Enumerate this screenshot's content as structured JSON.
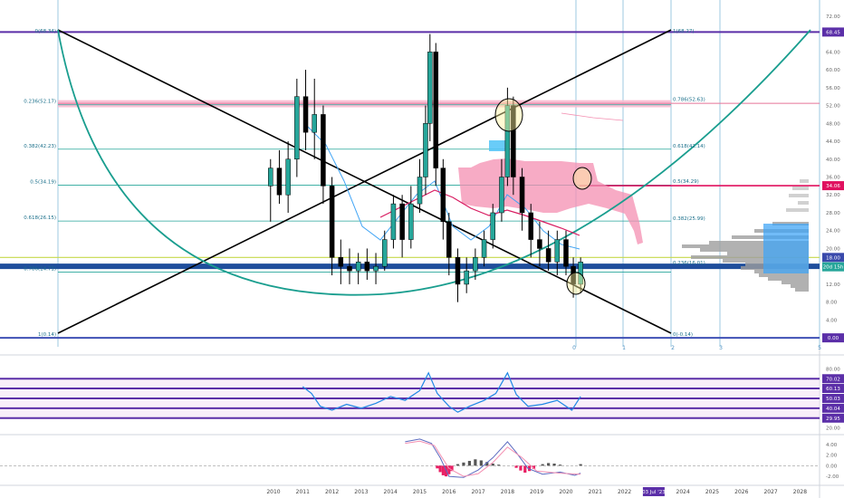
{
  "chart_data": {
    "type": "candlestick",
    "x_axis_years": [
      "2010",
      "2011",
      "2012",
      "2013",
      "2014",
      "2015",
      "2016",
      "2017",
      "2018",
      "2019",
      "2020",
      "2021",
      "2022",
      "2023",
      "2024",
      "2025",
      "2026",
      "2027",
      "2028"
    ],
    "date_badge": "03 Jul '23",
    "main_panel": {
      "y_ticks": [
        "72.00",
        "64.00",
        "60.00",
        "56.00",
        "52.00",
        "48.00",
        "44.00",
        "40.00",
        "36.00",
        "32.00",
        "28.00",
        "24.00",
        "20.00",
        "16.00",
        "12.00",
        "8.00",
        "4.00"
      ],
      "ylim": [
        -2,
        74
      ],
      "price_badges": [
        {
          "value": 68.45,
          "label": "68.45",
          "color": "#5b2fa8"
        },
        {
          "value": 34.06,
          "label": "34.06",
          "color": "#e0115f"
        },
        {
          "value": 18.0,
          "label": "18.00",
          "color": "#3949ab"
        },
        {
          "value": 15.9,
          "label": "20d 15h",
          "color": "#26a69a"
        },
        {
          "value": 0.0,
          "label": "0.00",
          "color": "#5b2fa8"
        }
      ],
      "fib_left": [
        {
          "label": "0(68.34)",
          "value": 68.34
        },
        {
          "label": "0.236(52.17)",
          "value": 52.17
        },
        {
          "label": "0.382(42.23)",
          "value": 42.23
        },
        {
          "label": "0.5(34.19)",
          "value": 34.19
        },
        {
          "label": "0.618(26.15)",
          "value": 26.15
        },
        {
          "label": "0.786(14.71)",
          "value": 14.71
        },
        {
          "label": "1(0.14)",
          "value": 0.14
        }
      ],
      "fib_right": [
        {
          "label": "1(68.27)",
          "value": 68.27
        },
        {
          "label": "0.786(52.63)",
          "value": 52.63
        },
        {
          "label": "0.618(42.14)",
          "value": 42.14
        },
        {
          "label": "0.5(34.29)",
          "value": 34.29
        },
        {
          "label": "0.382(25.99)",
          "value": 25.99
        },
        {
          "label": "0.236(16.01)",
          "value": 16.01
        },
        {
          "label": "0(-0.14)",
          "value": -0.14
        }
      ],
      "time_fib_labels": [
        "0",
        "1",
        "2",
        "3",
        "5"
      ],
      "horizontal_lines": [
        {
          "value": 68.45,
          "color": "#5b2fa8"
        },
        {
          "value": 52.5,
          "color": "#e57399"
        },
        {
          "value": 34.06,
          "color": "#e0115f"
        },
        {
          "value": 18.0,
          "color": "#c6d84a"
        },
        {
          "value": 16.0,
          "color": "#1f4e9c"
        },
        {
          "value": 0.0,
          "color": "#3f51b5"
        }
      ],
      "candles": [
        {
          "t": 2009.9,
          "o": 34,
          "h": 40,
          "l": 26,
          "c": 38
        },
        {
          "t": 2010.2,
          "o": 38,
          "h": 42,
          "l": 30,
          "c": 32
        },
        {
          "t": 2010.5,
          "o": 32,
          "h": 44,
          "l": 28,
          "c": 40
        },
        {
          "t": 2010.8,
          "o": 40,
          "h": 58,
          "l": 36,
          "c": 54
        },
        {
          "t": 2011.1,
          "o": 54,
          "h": 60,
          "l": 42,
          "c": 46
        },
        {
          "t": 2011.4,
          "o": 46,
          "h": 58,
          "l": 40,
          "c": 50
        },
        {
          "t": 2011.7,
          "o": 50,
          "h": 52,
          "l": 30,
          "c": 34
        },
        {
          "t": 2012.0,
          "o": 34,
          "h": 36,
          "l": 14,
          "c": 18
        },
        {
          "t": 2012.3,
          "o": 18,
          "h": 22,
          "l": 12,
          "c": 16
        },
        {
          "t": 2012.6,
          "o": 16,
          "h": 20,
          "l": 12,
          "c": 15
        },
        {
          "t": 2012.9,
          "o": 15,
          "h": 19,
          "l": 12,
          "c": 17
        },
        {
          "t": 2013.2,
          "o": 17,
          "h": 20,
          "l": 13,
          "c": 15
        },
        {
          "t": 2013.5,
          "o": 15,
          "h": 19,
          "l": 12,
          "c": 16
        },
        {
          "t": 2013.8,
          "o": 16,
          "h": 24,
          "l": 15,
          "c": 22
        },
        {
          "t": 2014.1,
          "o": 22,
          "h": 32,
          "l": 20,
          "c": 30
        },
        {
          "t": 2014.4,
          "o": 30,
          "h": 32,
          "l": 18,
          "c": 22
        },
        {
          "t": 2014.7,
          "o": 22,
          "h": 34,
          "l": 20,
          "c": 30
        },
        {
          "t": 2015.0,
          "o": 30,
          "h": 40,
          "l": 28,
          "c": 36
        },
        {
          "t": 2015.2,
          "o": 36,
          "h": 52,
          "l": 32,
          "c": 48
        },
        {
          "t": 2015.35,
          "o": 48,
          "h": 68,
          "l": 44,
          "c": 64
        },
        {
          "t": 2015.55,
          "o": 64,
          "h": 66,
          "l": 34,
          "c": 38
        },
        {
          "t": 2015.8,
          "o": 38,
          "h": 40,
          "l": 22,
          "c": 26
        },
        {
          "t": 2016.0,
          "o": 26,
          "h": 28,
          "l": 14,
          "c": 18
        },
        {
          "t": 2016.3,
          "o": 18,
          "h": 20,
          "l": 8,
          "c": 12
        },
        {
          "t": 2016.6,
          "o": 12,
          "h": 18,
          "l": 10,
          "c": 15
        },
        {
          "t": 2016.9,
          "o": 15,
          "h": 20,
          "l": 13,
          "c": 18
        },
        {
          "t": 2017.2,
          "o": 18,
          "h": 24,
          "l": 16,
          "c": 22
        },
        {
          "t": 2017.5,
          "o": 22,
          "h": 30,
          "l": 20,
          "c": 28
        },
        {
          "t": 2017.8,
          "o": 28,
          "h": 40,
          "l": 26,
          "c": 36
        },
        {
          "t": 2018.0,
          "o": 36,
          "h": 56,
          "l": 34,
          "c": 52
        },
        {
          "t": 2018.2,
          "o": 52,
          "h": 54,
          "l": 32,
          "c": 36
        },
        {
          "t": 2018.5,
          "o": 36,
          "h": 38,
          "l": 24,
          "c": 28
        },
        {
          "t": 2018.8,
          "o": 28,
          "h": 30,
          "l": 18,
          "c": 22
        },
        {
          "t": 2019.1,
          "o": 22,
          "h": 26,
          "l": 16,
          "c": 20
        },
        {
          "t": 2019.4,
          "o": 20,
          "h": 24,
          "l": 15,
          "c": 17
        },
        {
          "t": 2019.7,
          "o": 17,
          "h": 24,
          "l": 14,
          "c": 22
        },
        {
          "t": 2020.0,
          "o": 22,
          "h": 24,
          "l": 14,
          "c": 16
        },
        {
          "t": 2020.25,
          "o": 16,
          "h": 18,
          "l": 9,
          "c": 12
        },
        {
          "t": 2020.5,
          "o": 12,
          "h": 18,
          "l": 10,
          "c": 17
        }
      ]
    },
    "rsi_panel": {
      "y_ticks": [
        "80.00",
        "70.02",
        "60.13",
        "50.03",
        "40.04",
        "29.95",
        "20.00"
      ],
      "ylim": [
        15,
        85
      ],
      "levels": [
        {
          "value": 70.02,
          "label": "70.02"
        },
        {
          "value": 60.13,
          "label": "60.13"
        },
        {
          "value": 50.03,
          "label": "50.03"
        },
        {
          "value": 40.04,
          "label": "40.04"
        },
        {
          "value": 29.95,
          "label": "29.95"
        }
      ],
      "series": [
        {
          "t": 2011.0,
          "v": 62
        },
        {
          "t": 2011.3,
          "v": 55
        },
        {
          "t": 2011.6,
          "v": 42
        },
        {
          "t": 2012.0,
          "v": 38
        },
        {
          "t": 2012.5,
          "v": 44
        },
        {
          "t": 2013.0,
          "v": 40
        },
        {
          "t": 2013.5,
          "v": 45
        },
        {
          "t": 2014.0,
          "v": 52
        },
        {
          "t": 2014.5,
          "v": 48
        },
        {
          "t": 2015.0,
          "v": 58
        },
        {
          "t": 2015.3,
          "v": 76
        },
        {
          "t": 2015.6,
          "v": 55
        },
        {
          "t": 2016.0,
          "v": 42
        },
        {
          "t": 2016.3,
          "v": 36
        },
        {
          "t": 2016.7,
          "v": 42
        },
        {
          "t": 2017.2,
          "v": 48
        },
        {
          "t": 2017.6,
          "v": 55
        },
        {
          "t": 2018.0,
          "v": 76
        },
        {
          "t": 2018.3,
          "v": 54
        },
        {
          "t": 2018.7,
          "v": 42
        },
        {
          "t": 2019.2,
          "v": 44
        },
        {
          "t": 2019.7,
          "v": 48
        },
        {
          "t": 2020.2,
          "v": 38
        },
        {
          "t": 2020.5,
          "v": 52
        }
      ]
    },
    "macd_panel": {
      "y_ticks": [
        "4.00",
        "2.00",
        "0.00",
        "-2.00"
      ],
      "ylim": [
        -3,
        5.5
      ],
      "histogram": [
        {
          "t": 2015.6,
          "v": -0.5
        },
        {
          "t": 2015.7,
          "v": -1.2
        },
        {
          "t": 2015.8,
          "v": -1.8
        },
        {
          "t": 2015.9,
          "v": -2.0
        },
        {
          "t": 2016.0,
          "v": -1.6
        },
        {
          "t": 2016.1,
          "v": -1.0
        },
        {
          "t": 2016.3,
          "v": 0.3
        },
        {
          "t": 2016.5,
          "v": 0.6
        },
        {
          "t": 2016.7,
          "v": 0.9
        },
        {
          "t": 2016.9,
          "v": 1.2
        },
        {
          "t": 2017.1,
          "v": 1.0
        },
        {
          "t": 2017.3,
          "v": 0.7
        },
        {
          "t": 2017.5,
          "v": 0.4
        },
        {
          "t": 2017.7,
          "v": 0.2
        },
        {
          "t": 2018.3,
          "v": -0.4
        },
        {
          "t": 2018.45,
          "v": -0.9
        },
        {
          "t": 2018.6,
          "v": -1.3
        },
        {
          "t": 2018.75,
          "v": -1.0
        },
        {
          "t": 2018.9,
          "v": -0.6
        },
        {
          "t": 2019.2,
          "v": 0.3
        },
        {
          "t": 2019.4,
          "v": 0.5
        },
        {
          "t": 2019.6,
          "v": 0.4
        },
        {
          "t": 2019.8,
          "v": 0.2
        },
        {
          "t": 2020.5,
          "v": 0.3
        }
      ],
      "macd_line": [
        {
          "t": 2014.5,
          "v": 4.5
        },
        {
          "t": 2015.0,
          "v": 5.0
        },
        {
          "t": 2015.4,
          "v": 4.2
        },
        {
          "t": 2015.7,
          "v": 1.5
        },
        {
          "t": 2016.0,
          "v": -2.0
        },
        {
          "t": 2016.5,
          "v": -2.2
        },
        {
          "t": 2017.0,
          "v": -0.8
        },
        {
          "t": 2017.5,
          "v": 1.5
        },
        {
          "t": 2018.0,
          "v": 4.5
        },
        {
          "t": 2018.3,
          "v": 2.5
        },
        {
          "t": 2018.7,
          "v": -0.5
        },
        {
          "t": 2019.2,
          "v": -1.6
        },
        {
          "t": 2019.8,
          "v": -1.2
        },
        {
          "t": 2020.3,
          "v": -1.8
        },
        {
          "t": 2020.5,
          "v": -1.4
        }
      ],
      "signal_line": [
        {
          "t": 2014.5,
          "v": 4.2
        },
        {
          "t": 2015.0,
          "v": 4.6
        },
        {
          "t": 2015.5,
          "v": 3.8
        },
        {
          "t": 2016.0,
          "v": -0.5
        },
        {
          "t": 2016.5,
          "v": -2.0
        },
        {
          "t": 2017.0,
          "v": -1.5
        },
        {
          "t": 2017.5,
          "v": 0.6
        },
        {
          "t": 2018.0,
          "v": 3.5
        },
        {
          "t": 2018.5,
          "v": 1.5
        },
        {
          "t": 2019.0,
          "v": -1.0
        },
        {
          "t": 2019.8,
          "v": -1.4
        },
        {
          "t": 2020.5,
          "v": -1.6
        }
      ]
    }
  }
}
